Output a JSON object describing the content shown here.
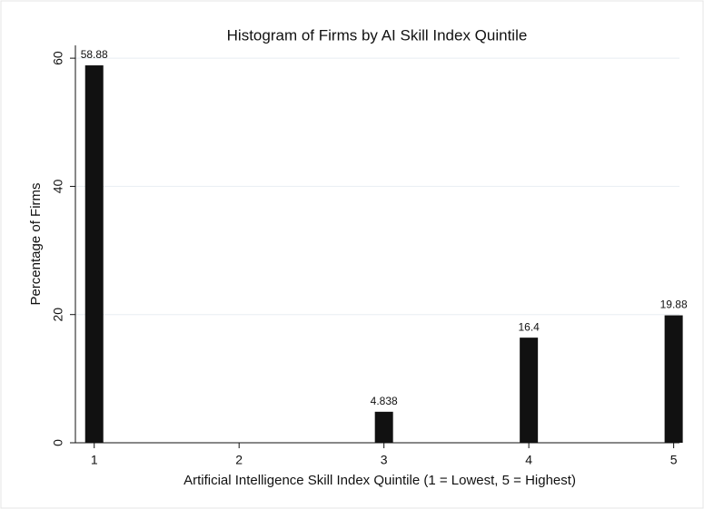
{
  "chart_data": {
    "type": "bar",
    "title": "Histogram of Firms by AI Skill Index Quintile",
    "x_label": "Artificial Intelligence Skill Index Quintile (1 = Lowest, 5 = Highest)",
    "y_label": "Percentage of Firms",
    "x": [
      1,
      3,
      4,
      5
    ],
    "values": [
      58.88,
      4.838,
      16.4,
      19.88
    ],
    "color": "#111111",
    "xlim": [
      0.87,
      5.04
    ],
    "xticks": [
      1,
      2,
      3,
      4,
      5
    ],
    "ylim": [
      0,
      62
    ],
    "yticks": [
      0,
      20,
      40,
      60
    ],
    "grid": true
  }
}
